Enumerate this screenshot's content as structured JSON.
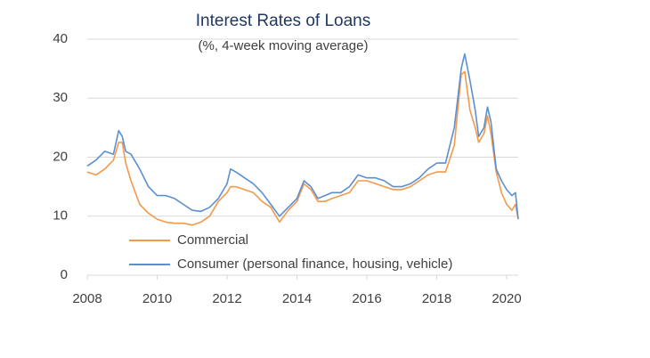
{
  "chart_data": {
    "type": "line",
    "title": "Interest Rates of Loans",
    "subtitle": "(%, 4-week moving average)",
    "x": [
      2008.0,
      2008.25,
      2008.5,
      2008.75,
      2008.9,
      2009.0,
      2009.1,
      2009.25,
      2009.5,
      2009.75,
      2010.0,
      2010.25,
      2010.5,
      2010.75,
      2011.0,
      2011.25,
      2011.5,
      2011.75,
      2012.0,
      2012.1,
      2012.25,
      2012.5,
      2012.75,
      2013.0,
      2013.25,
      2013.5,
      2013.75,
      2014.0,
      2014.2,
      2014.4,
      2014.6,
      2014.8,
      2015.0,
      2015.25,
      2015.5,
      2015.75,
      2016.0,
      2016.25,
      2016.5,
      2016.75,
      2017.0,
      2017.25,
      2017.5,
      2017.75,
      2018.0,
      2018.25,
      2018.5,
      2018.7,
      2018.8,
      2018.95,
      2019.1,
      2019.2,
      2019.35,
      2019.45,
      2019.55,
      2019.7,
      2019.85,
      2020.0,
      2020.15,
      2020.25,
      2020.33
    ],
    "series": [
      {
        "name": "Commercial",
        "color": "#f39a4a",
        "values": [
          17.5,
          17,
          18,
          19.5,
          22.5,
          22.5,
          19,
          16,
          12,
          10.5,
          9.5,
          9,
          8.8,
          8.8,
          8.5,
          9,
          10,
          12.5,
          14,
          15,
          15,
          14.5,
          14,
          12.5,
          11.5,
          9,
          11,
          12.5,
          15.5,
          14.5,
          12.5,
          12.5,
          13,
          13.5,
          14,
          16,
          16,
          15.5,
          15,
          14.5,
          14.5,
          15,
          16,
          17,
          17.5,
          17.5,
          22,
          34,
          34.5,
          28,
          25,
          22.5,
          24,
          27,
          24,
          17.5,
          14,
          12,
          11,
          12,
          9.5
        ]
      },
      {
        "name": "Consumer (personal finance, housing, vehicle)",
        "color": "#5b8fd0",
        "values": [
          18.5,
          19.5,
          21,
          20.5,
          24.5,
          23.5,
          21,
          20.5,
          18,
          15,
          13.5,
          13.5,
          13,
          12,
          11,
          10.8,
          11.5,
          13,
          15.5,
          18,
          17.5,
          16.5,
          15.5,
          14,
          12,
          10,
          11.5,
          13,
          16,
          15,
          13,
          13.5,
          14,
          14,
          15,
          17,
          16.5,
          16.5,
          16,
          15,
          15,
          15.5,
          16.5,
          18,
          19,
          19,
          25,
          35,
          37.5,
          33,
          28,
          23.5,
          25,
          28.5,
          26,
          18,
          16,
          14.5,
          13.5,
          14,
          9.5
        ]
      }
    ],
    "xlim": [
      2008,
      2020.33
    ],
    "xticks": [
      2008,
      2010,
      2012,
      2014,
      2016,
      2018,
      2020
    ],
    "ylim": [
      0,
      40
    ],
    "yticks": [
      0,
      10,
      20,
      30,
      40
    ],
    "grid": true,
    "legend": "lower left"
  }
}
